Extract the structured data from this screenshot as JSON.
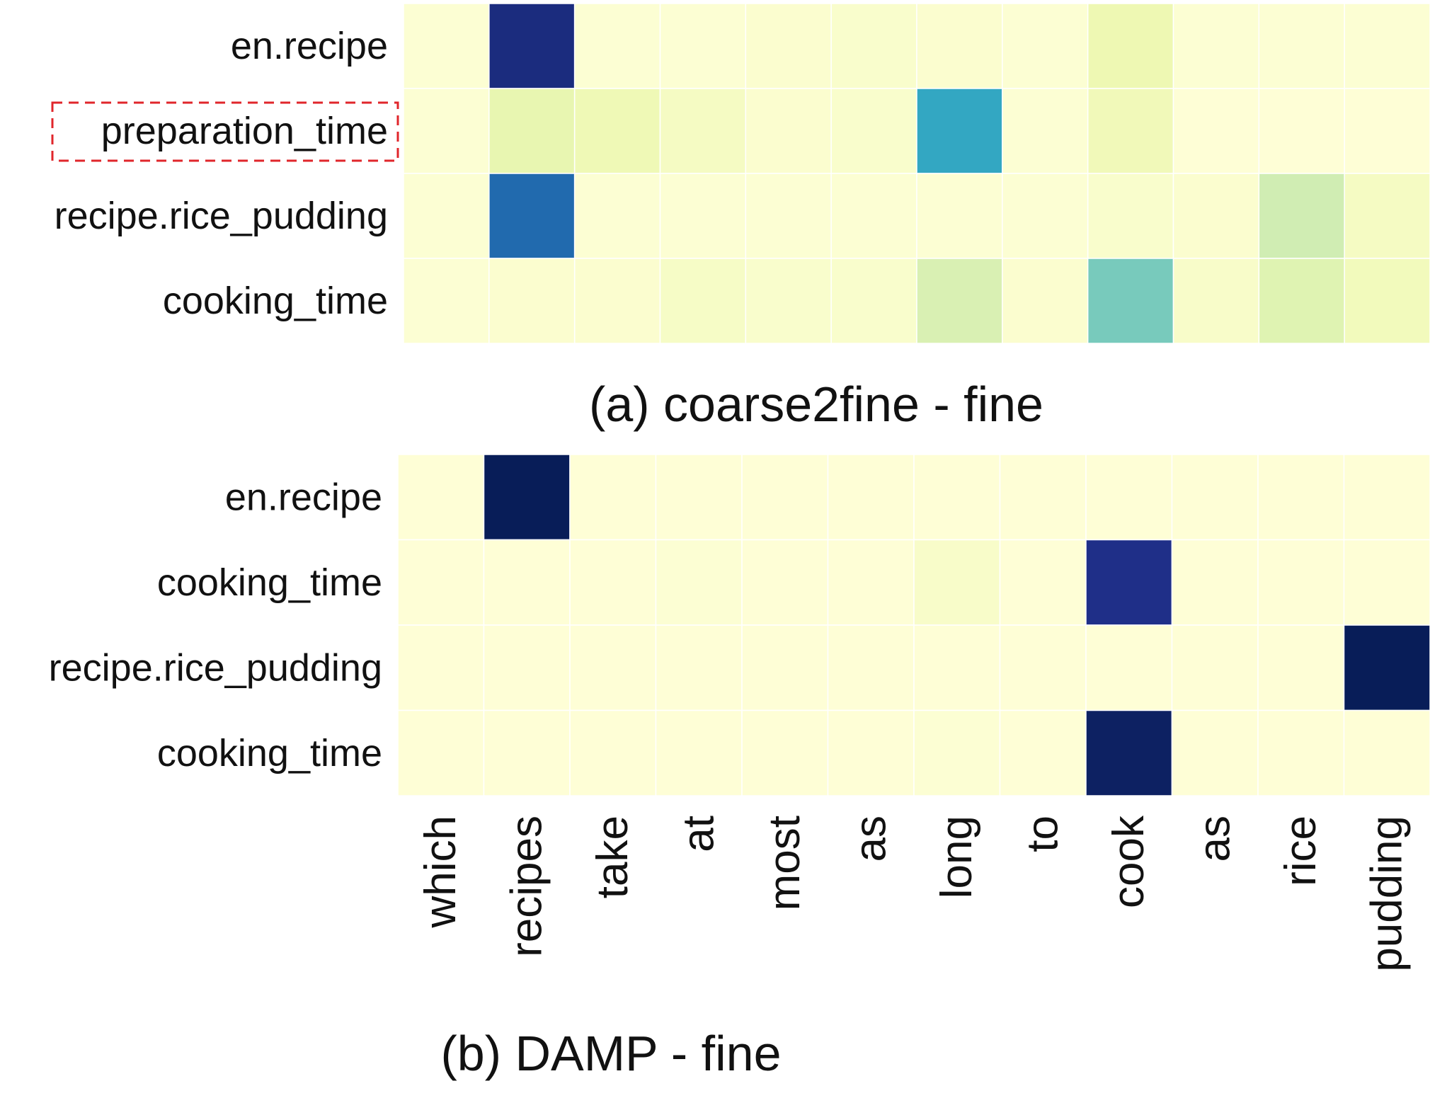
{
  "chart_data": [
    {
      "type": "heatmap",
      "title": "(a) coarse2fine - fine",
      "x_categories": [
        "which",
        "recipes",
        "take",
        "at",
        "most",
        "as",
        "long",
        "to",
        "cook",
        "as",
        "rice",
        "pudding"
      ],
      "y_categories": [
        "en.recipe",
        "preparation_time",
        "recipe.rice_pudding",
        "cooking_time"
      ],
      "highlighted_row": 1,
      "colorscale": "YlGnBu",
      "values": [
        [
          0.02,
          0.92,
          0.02,
          0.02,
          0.03,
          0.04,
          0.03,
          0.02,
          0.12,
          0.02,
          0.02,
          0.02
        ],
        [
          0.02,
          0.14,
          0.11,
          0.07,
          0.03,
          0.04,
          0.55,
          0.02,
          0.1,
          0.01,
          0.01,
          0.01
        ],
        [
          0.02,
          0.72,
          0.02,
          0.02,
          0.02,
          0.02,
          0.02,
          0.02,
          0.04,
          0.03,
          0.22,
          0.07
        ],
        [
          0.02,
          0.03,
          0.03,
          0.06,
          0.04,
          0.04,
          0.19,
          0.03,
          0.39,
          0.05,
          0.17,
          0.09
        ]
      ]
    },
    {
      "type": "heatmap",
      "title": "(b) DAMP - fine",
      "x_categories": [
        "which",
        "recipes",
        "take",
        "at",
        "most",
        "as",
        "long",
        "to",
        "cook",
        "as",
        "rice",
        "pudding"
      ],
      "y_categories": [
        "en.recipe",
        "cooking_time",
        "recipe.rice_pudding",
        "cooking_time"
      ],
      "colorscale": "YlGnBu",
      "values": [
        [
          0.01,
          1.0,
          0.01,
          0.01,
          0.01,
          0.01,
          0.01,
          0.01,
          0.01,
          0.01,
          0.01,
          0.01
        ],
        [
          0.01,
          0.01,
          0.01,
          0.02,
          0.01,
          0.01,
          0.05,
          0.01,
          0.9,
          0.01,
          0.01,
          0.01
        ],
        [
          0.01,
          0.01,
          0.01,
          0.01,
          0.01,
          0.01,
          0.01,
          0.01,
          0.01,
          0.01,
          0.01,
          1.0
        ],
        [
          0.01,
          0.01,
          0.01,
          0.01,
          0.01,
          0.01,
          0.02,
          0.01,
          0.98,
          0.01,
          0.01,
          0.01
        ]
      ]
    }
  ]
}
